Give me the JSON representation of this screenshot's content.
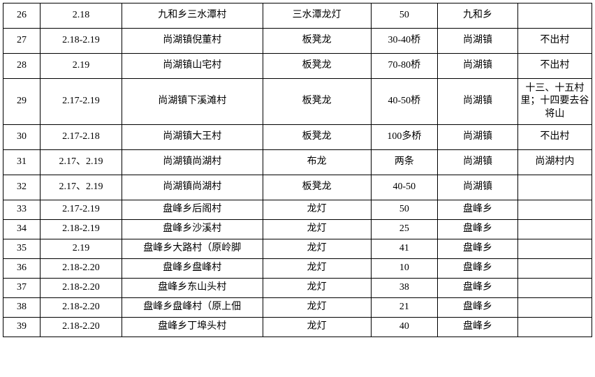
{
  "table": {
    "columns": [
      {
        "key": "id",
        "class": "col-id"
      },
      {
        "key": "date",
        "class": "col-date"
      },
      {
        "key": "village",
        "class": "col-village"
      },
      {
        "key": "type",
        "class": "col-type"
      },
      {
        "key": "count",
        "class": "col-count"
      },
      {
        "key": "town",
        "class": "col-town"
      },
      {
        "key": "note",
        "class": "col-note"
      }
    ],
    "rows": [
      {
        "h": "h-med",
        "cells": [
          "26",
          "2.18",
          "九和乡三水潭村",
          "三水潭龙灯",
          "50",
          "九和乡",
          ""
        ]
      },
      {
        "h": "h-med",
        "cells": [
          "27",
          "2.18-2.19",
          "尚湖镇倪董村",
          "板凳龙",
          "30-40桥",
          "尚湖镇",
          "不出村"
        ]
      },
      {
        "h": "h-med",
        "cells": [
          "28",
          "2.19",
          "尚湖镇山宅村",
          "板凳龙",
          "70-80桥",
          "尚湖镇",
          "不出村"
        ]
      },
      {
        "h": "h-tall",
        "cells": [
          "29",
          "2.17-2.19",
          "尚湖镇下溪滩村",
          "板凳龙",
          "40-50桥",
          "尚湖镇",
          "十三、十五村里；十四要去谷将山"
        ]
      },
      {
        "h": "h-med",
        "cells": [
          "30",
          "2.17-2.18",
          "尚湖镇大王村",
          "板凳龙",
          "100多桥",
          "尚湖镇",
          "不出村"
        ]
      },
      {
        "h": "h-med",
        "cells": [
          "31",
          "2.17、2.19",
          "尚湖镇尚湖村",
          "布龙",
          "两条",
          "尚湖镇",
          "尚湖村内"
        ]
      },
      {
        "h": "h-med",
        "cells": [
          "32",
          "2.17、2.19",
          "尚湖镇尚湖村",
          "板凳龙",
          "40-50",
          "尚湖镇",
          ""
        ]
      },
      {
        "h": "h-short",
        "cells": [
          "33",
          "2.17-2.19",
          "盘峰乡后阁村",
          "龙灯",
          "50",
          "盘峰乡",
          ""
        ]
      },
      {
        "h": "h-short",
        "cells": [
          "34",
          "2.18-2.19",
          "盘峰乡沙溪村",
          "龙灯",
          "25",
          "盘峰乡",
          ""
        ]
      },
      {
        "h": "h-short",
        "cells": [
          "35",
          "2.19",
          "盘峰乡大路村（原岭脚",
          "龙灯",
          "41",
          "盘峰乡",
          ""
        ]
      },
      {
        "h": "h-short",
        "cells": [
          "36",
          "2.18-2.20",
          "盘峰乡盘峰村",
          "龙灯",
          "10",
          "盘峰乡",
          ""
        ]
      },
      {
        "h": "h-short",
        "cells": [
          "37",
          "2.18-2.20",
          "盘峰乡东山头村",
          "龙灯",
          "38",
          "盘峰乡",
          ""
        ]
      },
      {
        "h": "h-short",
        "cells": [
          "38",
          "2.18-2.20",
          "盘峰乡盘峰村（原上佃",
          "龙灯",
          "21",
          "盘峰乡",
          ""
        ]
      },
      {
        "h": "h-short",
        "cells": [
          "39",
          "2.18-2.20",
          "盘峰乡丁埠头村",
          "龙灯",
          "40",
          "盘峰乡",
          ""
        ]
      }
    ],
    "border_color": "#000000",
    "background_color": "#ffffff",
    "text_color": "#000000",
    "font_size": 14
  }
}
